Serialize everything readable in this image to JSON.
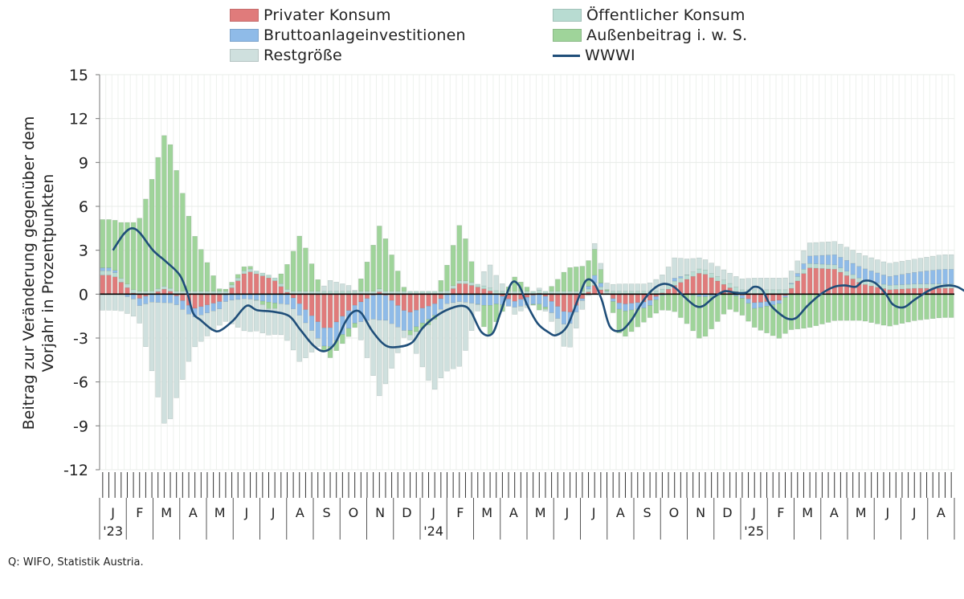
{
  "legend": {
    "private": "Privater Konsum",
    "public": "Öffentlicher Konsum",
    "gfcf": "Bruttoanlageinvestitionen",
    "netexp": "Außenbeitrag i. w. S.",
    "resid": "Restgröße",
    "wwwi": "WWWI"
  },
  "ylabel_line1": "Beitrag zur Veränderung gegenüber dem",
  "ylabel_line2": "Vorjahr in Prozentpunkten",
  "source": "Q: WIFO, Statistik Austria.",
  "colors": {
    "private": "#e07b7b",
    "public": "#b8dcd2",
    "gfcf": "#8fbbe8",
    "netexp": "#9fd49a",
    "resid": "#cfe0de",
    "wwwi": "#1f4e79"
  },
  "chart_data": {
    "type": "bar",
    "stacked": true,
    "ylim": [
      -12,
      15
    ],
    "yticks": [
      15,
      12,
      9,
      6,
      3,
      0,
      -3,
      -6,
      -9,
      -12
    ],
    "grid": true,
    "weeks_per_month_approx": 4.35,
    "months": [
      "J",
      "F",
      "M",
      "A",
      "M",
      "J",
      "J",
      "A",
      "S",
      "O",
      "N",
      "D",
      "J",
      "F",
      "M",
      "A",
      "M",
      "J",
      "J",
      "A",
      "S",
      "O",
      "N",
      "D",
      "J",
      "F",
      "M",
      "A",
      "M",
      "J",
      "J",
      "A"
    ],
    "year_labels": [
      {
        "month_index": 0,
        "label": "'23"
      },
      {
        "month_index": 12,
        "label": "'24"
      },
      {
        "month_index": 24,
        "label": "'25"
      }
    ],
    "series_names": [
      "Privater Konsum",
      "Öffentlicher Konsum",
      "Bruttoanlageinvestitionen",
      "Außenbeitrag i. w. S.",
      "Restgröße",
      "WWWI"
    ],
    "monthly": {
      "private": [
        1.3,
        -0.3,
        0.4,
        -1.0,
        -0.5,
        1.6,
        1.0,
        -0.7,
        -2.5,
        -0.8,
        0.2,
        -1.3,
        -0.7,
        0.8,
        0.3,
        -0.5,
        0.1,
        -1.4,
        0.6,
        -0.7,
        -0.5,
        0.6,
        1.5,
        0.5,
        -0.6,
        -0.4,
        1.8,
        1.7,
        0.7,
        0.3,
        0.4,
        0.4
      ],
      "public": [
        0.3,
        0.2,
        0.2,
        0.2,
        0.2,
        0.2,
        0.2,
        0.2,
        0.2,
        0.2,
        0.2,
        0.2,
        0.2,
        0.2,
        0.2,
        0.2,
        0.2,
        0.2,
        0.2,
        0.2,
        0.2,
        0.3,
        0.3,
        0.3,
        0.3,
        0.3,
        0.3,
        0.3,
        0.3,
        0.3,
        0.3,
        0.3
      ],
      "gfcf": [
        0.2,
        -0.5,
        -0.6,
        -0.6,
        -0.5,
        -0.3,
        -0.6,
        -0.8,
        -1.3,
        -1.2,
        -1.8,
        -1.3,
        -0.8,
        -0.5,
        -0.8,
        -0.4,
        -0.7,
        -0.9,
        0.5,
        -0.5,
        -0.4,
        0.2,
        -0.2,
        0.0,
        -0.4,
        -0.2,
        0.5,
        0.7,
        0.8,
        0.6,
        0.8,
        1.0
      ],
      "netexp": [
        3.3,
        5.0,
        10.8,
        4.0,
        0.1,
        0.3,
        -0.6,
        3.9,
        -0.8,
        -0.5,
        4.5,
        -0.3,
        -0.4,
        4.0,
        -2.3,
        1.0,
        -0.5,
        1.6,
        1.8,
        -1.9,
        -0.8,
        -1.2,
        -3.0,
        -1.0,
        -1.3,
        -2.5,
        -2.3,
        -1.8,
        -1.8,
        -2.2,
        -1.8,
        -1.6
      ],
      "resid": [
        -1.1,
        -1.2,
        -8.9,
        -2.1,
        -1.1,
        -2.3,
        -1.7,
        -3.2,
        0.8,
        0.3,
        -5.4,
        0.2,
        -4.8,
        -4.4,
        1.8,
        -0.5,
        0.2,
        -1.8,
        0.4,
        0.5,
        0.5,
        1.4,
        0.7,
        0.7,
        0.8,
        0.8,
        0.9,
        0.9,
        0.9,
        0.9,
        0.9,
        1.0
      ]
    },
    "wwwi": [
      {
        "m": 0.0,
        "v": 3.0
      },
      {
        "m": 0.4,
        "v": 4.1
      },
      {
        "m": 0.7,
        "v": 4.5
      },
      {
        "m": 1.0,
        "v": 4.2
      },
      {
        "m": 1.5,
        "v": 3.0
      },
      {
        "m": 2.0,
        "v": 2.2
      },
      {
        "m": 2.5,
        "v": 1.3
      },
      {
        "m": 2.8,
        "v": 0.0
      },
      {
        "m": 3.0,
        "v": -1.3
      },
      {
        "m": 3.3,
        "v": -1.8
      },
      {
        "m": 3.7,
        "v": -2.4
      },
      {
        "m": 4.0,
        "v": -2.5
      },
      {
        "m": 4.5,
        "v": -1.8
      },
      {
        "m": 5.0,
        "v": -0.8
      },
      {
        "m": 5.4,
        "v": -1.1
      },
      {
        "m": 6.0,
        "v": -1.2
      },
      {
        "m": 6.6,
        "v": -1.5
      },
      {
        "m": 7.0,
        "v": -2.4
      },
      {
        "m": 7.5,
        "v": -3.5
      },
      {
        "m": 7.9,
        "v": -3.9
      },
      {
        "m": 8.3,
        "v": -3.4
      },
      {
        "m": 8.7,
        "v": -1.9
      },
      {
        "m": 9.0,
        "v": -1.2
      },
      {
        "m": 9.3,
        "v": -1.3
      },
      {
        "m": 9.7,
        "v": -2.5
      },
      {
        "m": 10.2,
        "v": -3.5
      },
      {
        "m": 10.7,
        "v": -3.6
      },
      {
        "m": 11.2,
        "v": -3.3
      },
      {
        "m": 11.6,
        "v": -2.3
      },
      {
        "m": 12.1,
        "v": -1.5
      },
      {
        "m": 12.6,
        "v": -1.0
      },
      {
        "m": 13.1,
        "v": -0.8
      },
      {
        "m": 13.4,
        "v": -1.2
      },
      {
        "m": 13.8,
        "v": -2.6
      },
      {
        "m": 14.2,
        "v": -2.7
      },
      {
        "m": 14.5,
        "v": -1.3
      },
      {
        "m": 14.9,
        "v": 0.7
      },
      {
        "m": 15.2,
        "v": 0.6
      },
      {
        "m": 15.5,
        "v": -0.7
      },
      {
        "m": 15.9,
        "v": -2.0
      },
      {
        "m": 16.3,
        "v": -2.6
      },
      {
        "m": 16.6,
        "v": -2.8
      },
      {
        "m": 17.0,
        "v": -2.2
      },
      {
        "m": 17.4,
        "v": -0.4
      },
      {
        "m": 17.7,
        "v": 0.9
      },
      {
        "m": 18.0,
        "v": 0.8
      },
      {
        "m": 18.3,
        "v": -0.4
      },
      {
        "m": 18.6,
        "v": -2.2
      },
      {
        "m": 19.0,
        "v": -2.5
      },
      {
        "m": 19.4,
        "v": -1.8
      },
      {
        "m": 19.8,
        "v": -0.6
      },
      {
        "m": 20.2,
        "v": 0.3
      },
      {
        "m": 20.6,
        "v": 0.7
      },
      {
        "m": 21.0,
        "v": 0.5
      },
      {
        "m": 21.4,
        "v": -0.2
      },
      {
        "m": 21.8,
        "v": -0.8
      },
      {
        "m": 22.1,
        "v": -0.8
      },
      {
        "m": 22.5,
        "v": -0.2
      },
      {
        "m": 22.9,
        "v": 0.2
      },
      {
        "m": 23.3,
        "v": 0.1
      },
      {
        "m": 23.7,
        "v": 0.1
      },
      {
        "m": 24.0,
        "v": 0.5
      },
      {
        "m": 24.3,
        "v": 0.3
      },
      {
        "m": 24.6,
        "v": -0.7
      },
      {
        "m": 25.0,
        "v": -1.4
      },
      {
        "m": 25.3,
        "v": -1.7
      },
      {
        "m": 25.6,
        "v": -1.6
      },
      {
        "m": 26.0,
        "v": -0.8
      },
      {
        "m": 26.5,
        "v": 0.0
      },
      {
        "m": 27.0,
        "v": 0.5
      },
      {
        "m": 27.4,
        "v": 0.6
      },
      {
        "m": 27.8,
        "v": 0.5
      },
      {
        "m": 28.1,
        "v": 0.9
      },
      {
        "m": 28.5,
        "v": 0.8
      },
      {
        "m": 28.9,
        "v": 0.1
      },
      {
        "m": 29.2,
        "v": -0.7
      },
      {
        "m": 29.6,
        "v": -0.9
      },
      {
        "m": 30.0,
        "v": -0.4
      },
      {
        "m": 30.5,
        "v": 0.2
      },
      {
        "m": 30.9,
        "v": 0.5
      },
      {
        "m": 31.3,
        "v": 0.6
      },
      {
        "m": 31.6,
        "v": 0.5
      },
      {
        "m": 31.9,
        "v": 0.2
      }
    ]
  }
}
